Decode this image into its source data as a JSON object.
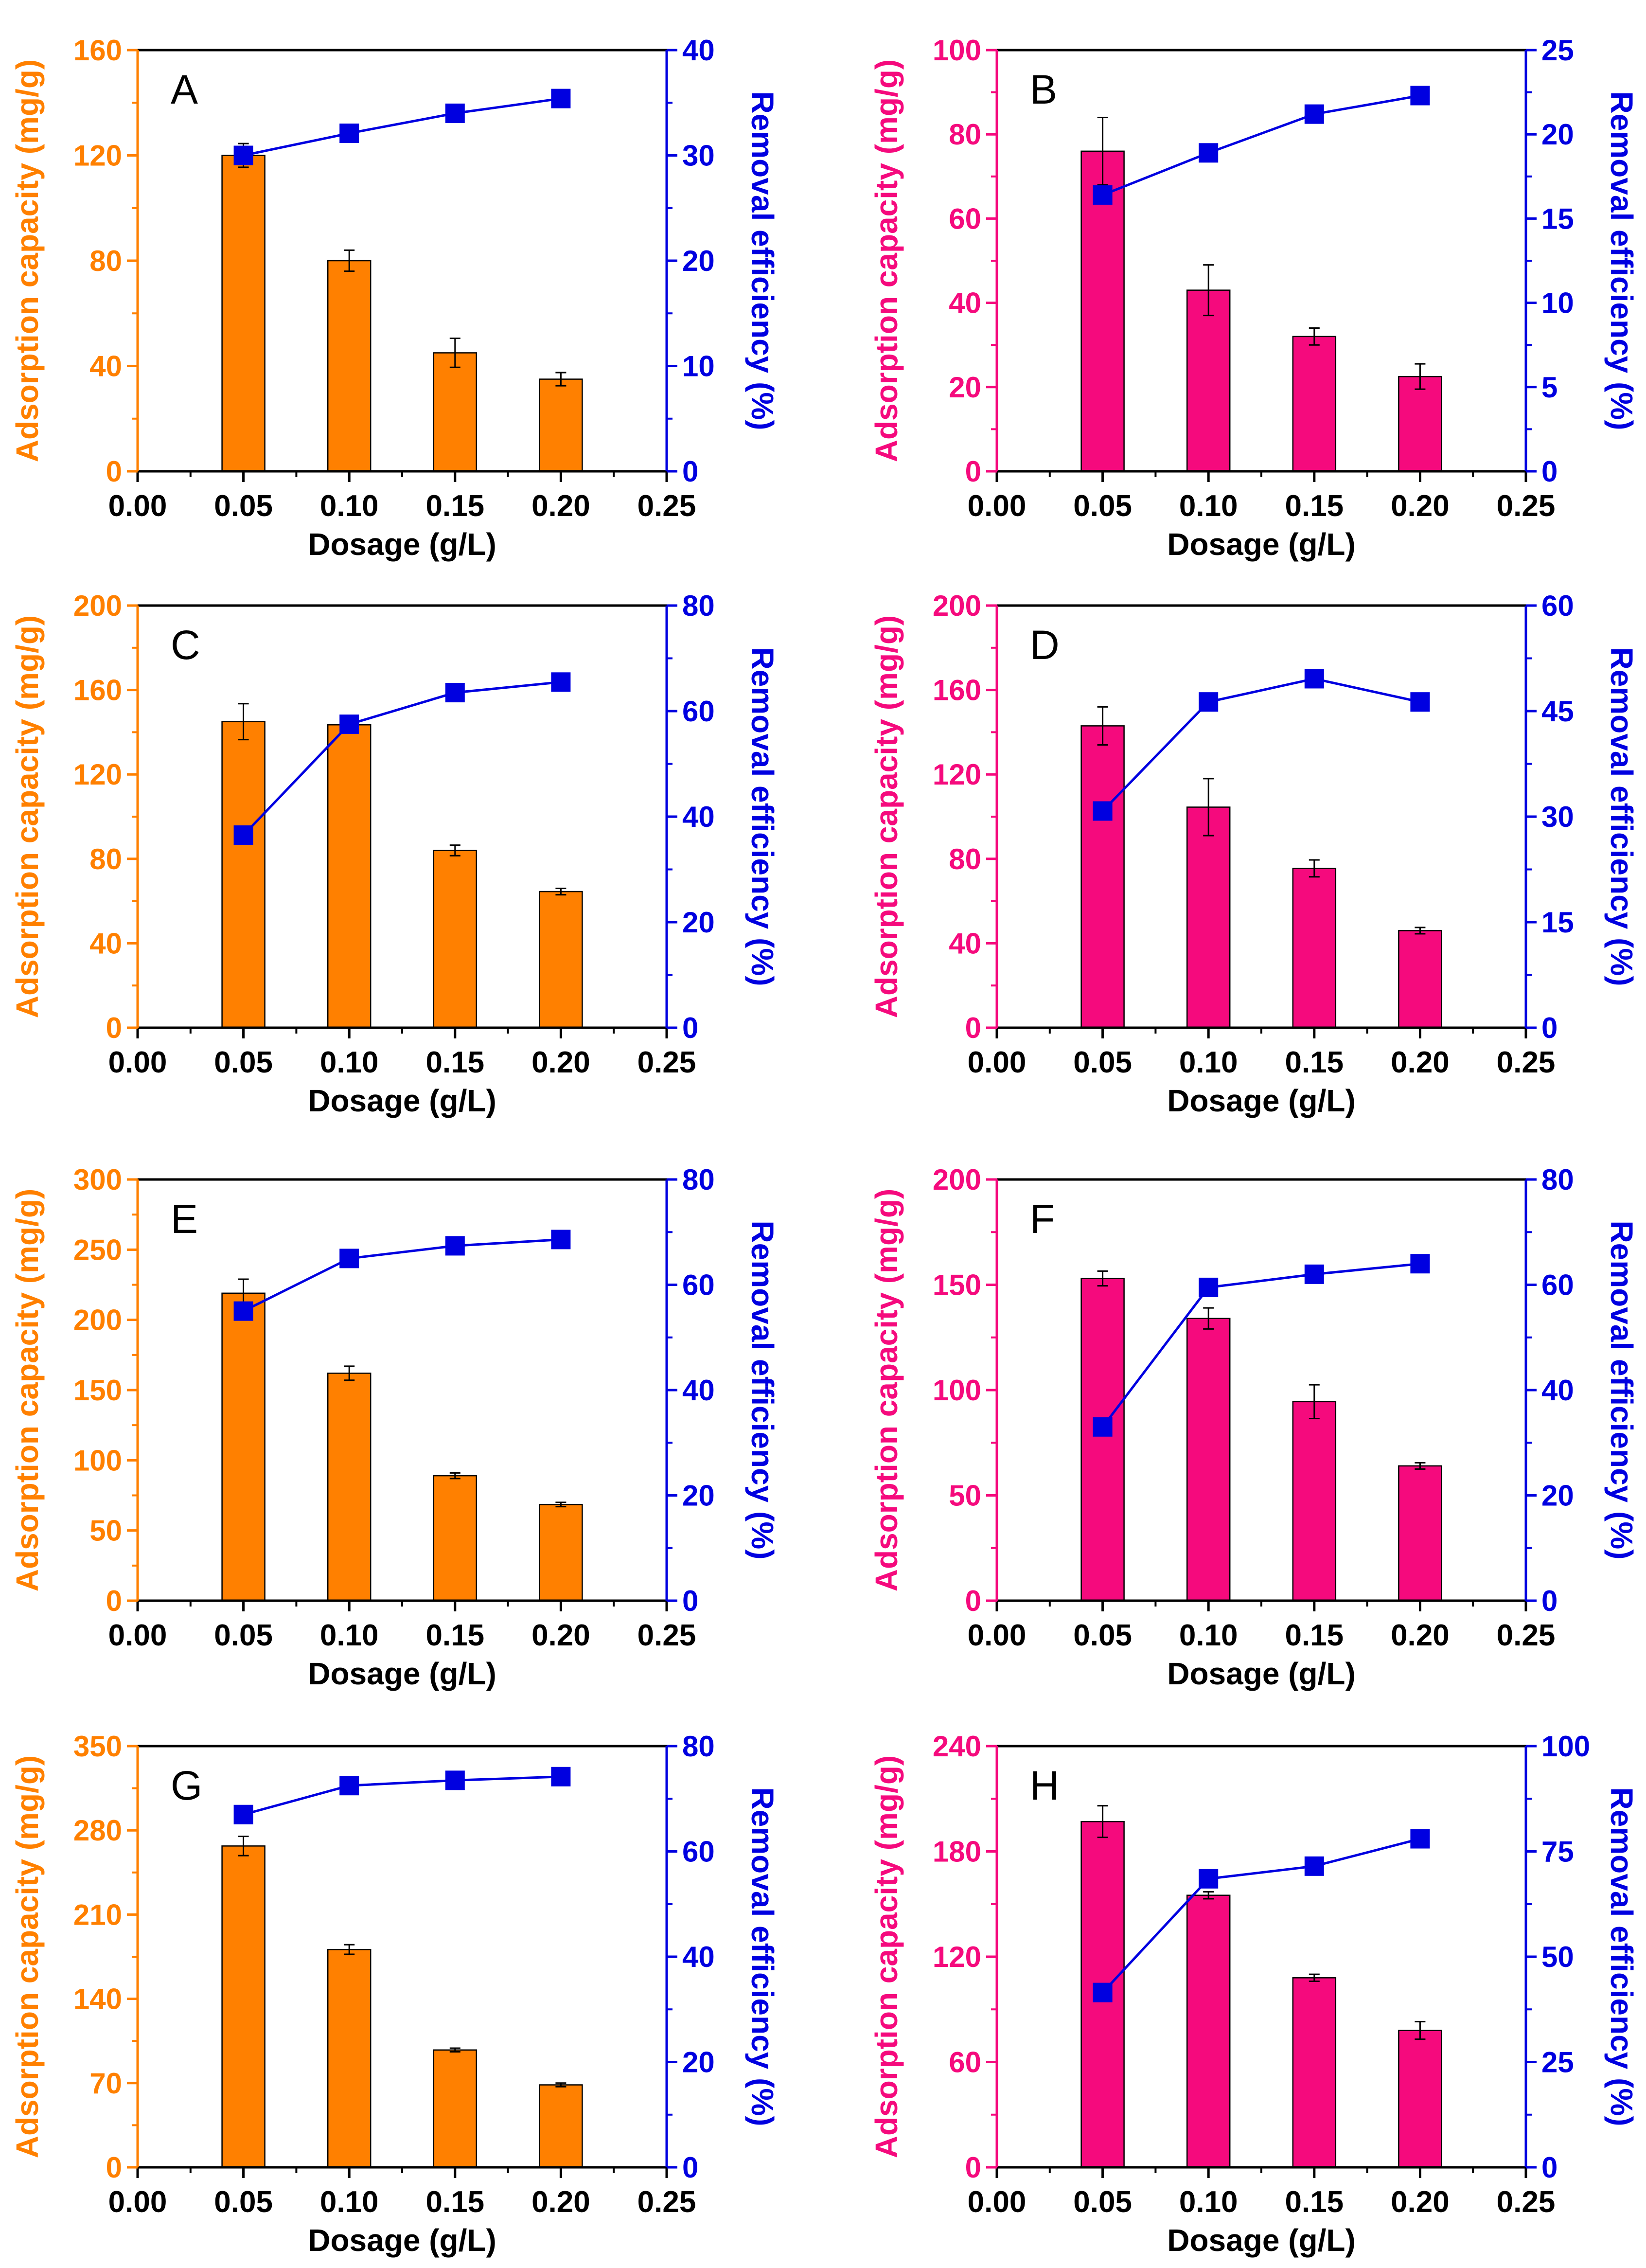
{
  "figure": {
    "x_tick_labels": [
      "0.00",
      "0.05",
      "0.10",
      "0.15",
      "0.20",
      "0.25"
    ],
    "x_label": "Dosage (g/L)",
    "y_left_label": "Adsorption capacity (mg/g)",
    "y_right_label": "Removal efficiency (%)"
  },
  "colors": {
    "orange": "#FF8000",
    "pink": "#F50A7D",
    "blue": "#0000E0",
    "axis": "#000000"
  },
  "chart_data": [
    {
      "panel": "A",
      "type": "bar+line",
      "bar_color": "orange",
      "x": [
        0.05,
        0.1,
        0.15,
        0.2
      ],
      "xlim": [
        0,
        0.25
      ],
      "xlabel": "Dosage (g/L)",
      "ylabel": "Adsorption capacity (mg/g)",
      "y2label": "Removal efficiency (%)",
      "ylim": [
        0,
        160
      ],
      "yticks": [
        0,
        40,
        80,
        120,
        160
      ],
      "y2lim": [
        0,
        40
      ],
      "y2ticks": [
        0,
        10,
        20,
        30,
        40
      ],
      "series": [
        {
          "name": "Adsorption capacity",
          "type": "bar",
          "values": [
            120,
            80,
            45,
            35
          ],
          "errors": [
            4.5,
            4,
            5.5,
            2.5
          ]
        },
        {
          "name": "Removal efficiency",
          "type": "line",
          "values": [
            30,
            32.1,
            34,
            35.4
          ]
        }
      ]
    },
    {
      "panel": "B",
      "type": "bar+line",
      "bar_color": "pink",
      "x": [
        0.05,
        0.1,
        0.15,
        0.2
      ],
      "xlim": [
        0,
        0.25
      ],
      "xlabel": "Dosage (g/L)",
      "ylabel": "Adsorption capacity (mg/g)",
      "y2label": "Removal efficiency (%)",
      "ylim": [
        0,
        100
      ],
      "yticks": [
        0,
        20,
        40,
        60,
        80,
        100
      ],
      "y2lim": [
        0,
        25
      ],
      "y2ticks": [
        0,
        5,
        10,
        15,
        20,
        25
      ],
      "series": [
        {
          "name": "Adsorption capacity",
          "type": "bar",
          "values": [
            76,
            43,
            32,
            22.5
          ],
          "errors": [
            8,
            6,
            2,
            3
          ]
        },
        {
          "name": "Removal efficiency",
          "type": "line",
          "values": [
            16.4,
            18.9,
            21.2,
            22.3
          ]
        }
      ]
    },
    {
      "panel": "C",
      "type": "bar+line",
      "bar_color": "orange",
      "x": [
        0.05,
        0.1,
        0.15,
        0.2
      ],
      "xlim": [
        0,
        0.25
      ],
      "xlabel": "Dosage (g/L)",
      "ylabel": "Adsorption capacity (mg/g)",
      "y2label": "Removal efficiency (%)",
      "ylim": [
        0,
        200
      ],
      "yticks": [
        0,
        40,
        80,
        120,
        160,
        200
      ],
      "y2lim": [
        0,
        80
      ],
      "y2ticks": [
        0,
        20,
        40,
        60,
        80
      ],
      "series": [
        {
          "name": "Adsorption capacity",
          "type": "bar",
          "values": [
            145,
            143.5,
            84,
            64.5
          ],
          "errors": [
            8.5,
            2,
            2.5,
            1.5
          ]
        },
        {
          "name": "Removal efficiency",
          "type": "line",
          "values": [
            36.5,
            57.5,
            63.5,
            65.5
          ]
        }
      ]
    },
    {
      "panel": "D",
      "type": "bar+line",
      "bar_color": "pink",
      "x": [
        0.05,
        0.1,
        0.15,
        0.2
      ],
      "xlim": [
        0,
        0.25
      ],
      "xlabel": "Dosage (g/L)",
      "ylabel": "Adsorption capacity (mg/g)",
      "y2label": "Removal efficiency (%)",
      "ylim": [
        0,
        200
      ],
      "yticks": [
        0,
        40,
        80,
        120,
        160,
        200
      ],
      "y2lim": [
        0,
        60
      ],
      "y2ticks": [
        0,
        15,
        30,
        45,
        60
      ],
      "series": [
        {
          "name": "Adsorption capacity",
          "type": "bar",
          "values": [
            143,
            104.5,
            75.5,
            46
          ],
          "errors": [
            9,
            13.5,
            4,
            1.5
          ]
        },
        {
          "name": "Removal efficiency",
          "type": "line",
          "values": [
            30.8,
            46.3,
            49.6,
            46.3
          ]
        }
      ]
    },
    {
      "panel": "E",
      "type": "bar+line",
      "bar_color": "orange",
      "x": [
        0.05,
        0.1,
        0.15,
        0.2
      ],
      "xlim": [
        0,
        0.25
      ],
      "xlabel": "Dosage (g/L)",
      "ylabel": "Adsorption capacity (mg/g)",
      "y2label": "Removal efficiency (%)",
      "ylim": [
        0,
        300
      ],
      "yticks": [
        0,
        50,
        100,
        150,
        200,
        250,
        300
      ],
      "y2lim": [
        0,
        80
      ],
      "y2ticks": [
        0,
        20,
        40,
        60,
        80
      ],
      "series": [
        {
          "name": "Adsorption capacity",
          "type": "bar",
          "values": [
            219,
            162,
            89,
            68.5
          ],
          "errors": [
            10,
            5,
            2,
            1.5
          ]
        },
        {
          "name": "Removal efficiency",
          "type": "line",
          "values": [
            55,
            65,
            67.4,
            68.6
          ]
        }
      ]
    },
    {
      "panel": "F",
      "type": "bar+line",
      "bar_color": "pink",
      "x": [
        0.05,
        0.1,
        0.15,
        0.2
      ],
      "xlim": [
        0,
        0.25
      ],
      "xlabel": "Dosage (g/L)",
      "ylabel": "Adsorption capacity (mg/g)",
      "y2label": "Removal efficiency (%)",
      "ylim": [
        0,
        200
      ],
      "yticks": [
        0,
        50,
        100,
        150,
        200
      ],
      "y2lim": [
        0,
        80
      ],
      "y2ticks": [
        0,
        20,
        40,
        60,
        80
      ],
      "series": [
        {
          "name": "Adsorption capacity",
          "type": "bar",
          "values": [
            153,
            134,
            94.5,
            64
          ],
          "errors": [
            3.5,
            5,
            8,
            1.5
          ]
        },
        {
          "name": "Removal efficiency",
          "type": "line",
          "values": [
            33,
            59.5,
            62,
            64
          ]
        }
      ]
    },
    {
      "panel": "G",
      "type": "bar+line",
      "bar_color": "orange",
      "x": [
        0.05,
        0.1,
        0.15,
        0.2
      ],
      "xlim": [
        0,
        0.25
      ],
      "xlabel": "Dosage (g/L)",
      "ylabel": "Adsorption capacity (mg/g)",
      "y2label": "Removal efficiency (%)",
      "ylim": [
        0,
        350
      ],
      "yticks": [
        0,
        70,
        140,
        210,
        280,
        350
      ],
      "y2lim": [
        0,
        80
      ],
      "y2ticks": [
        0,
        20,
        40,
        60,
        80
      ],
      "series": [
        {
          "name": "Adsorption capacity",
          "type": "bar",
          "values": [
            267,
            181,
            97.5,
            68.5
          ],
          "errors": [
            8,
            4,
            1.5,
            1.5
          ]
        },
        {
          "name": "Removal efficiency",
          "type": "line",
          "values": [
            67,
            72.5,
            73.5,
            74.2
          ]
        }
      ]
    },
    {
      "panel": "H",
      "type": "bar+line",
      "bar_color": "pink",
      "x": [
        0.05,
        0.1,
        0.15,
        0.2
      ],
      "xlim": [
        0,
        0.25
      ],
      "xlabel": "Dosage (g/L)",
      "ylabel": "Adsorption capacity (mg/g)",
      "y2label": "Removal efficiency (%)",
      "ylim": [
        0,
        240
      ],
      "yticks": [
        0,
        60,
        120,
        180,
        240
      ],
      "y2lim": [
        0,
        100
      ],
      "y2ticks": [
        0,
        25,
        50,
        75,
        100
      ],
      "series": [
        {
          "name": "Adsorption capacity",
          "type": "bar",
          "values": [
            197,
            155,
            108,
            78
          ],
          "errors": [
            9,
            2,
            2,
            5
          ]
        },
        {
          "name": "Removal efficiency",
          "type": "line",
          "values": [
            41.5,
            68.5,
            71.5,
            78
          ]
        }
      ]
    }
  ]
}
